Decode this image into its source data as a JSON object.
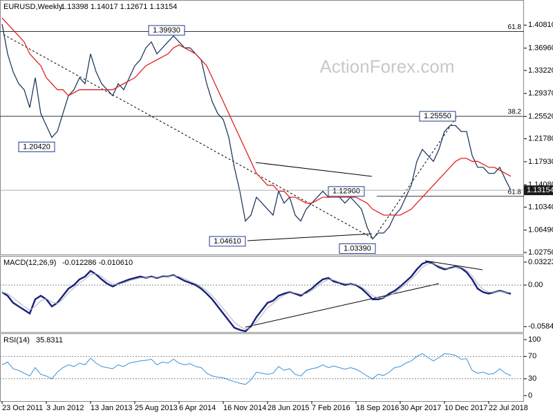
{
  "chart_data": [
    {
      "type": "line",
      "title": "EURUSD,Weekly",
      "subtitle": "1.13398 1.14017 1.12671 1.13154",
      "watermark": "ActionForex.com",
      "xlim": [
        -1.5,
        377.5
      ],
      "ylim": [
        1.024,
        1.449
      ],
      "yticks": [
        {
          "value": 1.4081,
          "label": "1.40810"
        },
        {
          "value": 1.3696,
          "label": "1.36960"
        },
        {
          "value": 1.3322,
          "label": "1.33220"
        },
        {
          "value": 1.2937,
          "label": "1.29370"
        },
        {
          "value": 1.2552,
          "label": "1.25520"
        },
        {
          "value": 1.2178,
          "label": "1.21780"
        },
        {
          "value": 1.1793,
          "label": "1.17930"
        },
        {
          "value": 1.1408,
          "label": "1.14080"
        },
        {
          "value": 1.1034,
          "label": "1.10340"
        },
        {
          "value": 1.0649,
          "label": "1.06490"
        },
        {
          "value": 1.0275,
          "label": "1.02750"
        }
      ],
      "x": [
        0,
        4,
        8,
        12,
        16,
        20,
        24,
        28,
        32,
        36,
        40,
        44,
        48,
        52,
        56,
        60,
        64,
        68,
        72,
        76,
        80,
        84,
        88,
        92,
        96,
        100,
        104,
        108,
        112,
        116,
        120,
        124,
        128,
        132,
        136,
        140,
        144,
        148,
        152,
        156,
        160,
        164,
        168,
        172,
        176,
        180,
        184,
        188,
        192,
        196,
        200,
        204,
        208,
        212,
        216,
        220,
        224,
        228,
        232,
        236,
        240,
        244,
        248,
        252,
        256,
        260,
        264,
        268,
        272,
        276,
        280,
        284,
        288,
        292,
        296,
        300,
        304,
        308,
        312,
        316,
        320,
        324,
        328,
        332,
        336,
        340,
        344,
        348,
        352,
        356,
        360,
        364,
        368
      ],
      "series": [
        {
          "name": "EURUSD",
          "color": "#1f3a5f",
          "values": [
            1.41,
            1.36,
            1.33,
            1.31,
            1.3,
            1.27,
            1.32,
            1.26,
            1.24,
            1.22,
            1.23,
            1.26,
            1.29,
            1.3,
            1.32,
            1.31,
            1.36,
            1.33,
            1.31,
            1.3,
            1.29,
            1.31,
            1.3,
            1.32,
            1.34,
            1.35,
            1.37,
            1.38,
            1.36,
            1.37,
            1.38,
            1.39,
            1.38,
            1.37,
            1.37,
            1.36,
            1.35,
            1.31,
            1.28,
            1.26,
            1.25,
            1.22,
            1.17,
            1.13,
            1.08,
            1.09,
            1.12,
            1.11,
            1.1,
            1.09,
            1.13,
            1.11,
            1.12,
            1.09,
            1.08,
            1.1,
            1.11,
            1.12,
            1.13,
            1.12,
            1.13,
            1.12,
            1.11,
            1.12,
            1.11,
            1.1,
            1.07,
            1.05,
            1.06,
            1.06,
            1.07,
            1.09,
            1.1,
            1.12,
            1.14,
            1.18,
            1.2,
            1.19,
            1.18,
            1.2,
            1.23,
            1.24,
            1.24,
            1.23,
            1.23,
            1.19,
            1.17,
            1.17,
            1.16,
            1.16,
            1.17,
            1.15,
            1.13154
          ]
        },
        {
          "name": "MA",
          "color": "#e02020",
          "values": [
            1.42,
            1.41,
            1.4,
            1.39,
            1.38,
            1.36,
            1.35,
            1.34,
            1.32,
            1.31,
            1.3,
            1.3,
            1.29,
            1.295,
            1.3,
            1.3,
            1.3,
            1.3,
            1.3,
            1.3,
            1.3,
            1.305,
            1.31,
            1.315,
            1.32,
            1.33,
            1.34,
            1.345,
            1.35,
            1.355,
            1.36,
            1.37,
            1.375,
            1.37,
            1.365,
            1.36,
            1.35,
            1.34,
            1.32,
            1.3,
            1.28,
            1.26,
            1.24,
            1.22,
            1.2,
            1.18,
            1.16,
            1.15,
            1.14,
            1.14,
            1.13,
            1.13,
            1.12,
            1.12,
            1.115,
            1.11,
            1.11,
            1.115,
            1.12,
            1.12,
            1.12,
            1.12,
            1.12,
            1.12,
            1.12,
            1.115,
            1.11,
            1.1,
            1.095,
            1.09,
            1.09,
            1.09,
            1.09,
            1.095,
            1.1,
            1.11,
            1.12,
            1.13,
            1.14,
            1.15,
            1.16,
            1.17,
            1.18,
            1.185,
            1.185,
            1.18,
            1.18,
            1.175,
            1.17,
            1.17,
            1.165,
            1.16,
            1.155
          ]
        }
      ],
      "price_labels": [
        {
          "label": "1.39930",
          "value": 1.3993,
          "x": 106
        },
        {
          "label": "1.20420",
          "value": 1.2042,
          "x": 12
        },
        {
          "label": "1.04610",
          "value": 1.0461,
          "x": 150
        },
        {
          "label": "1.03390",
          "value": 1.0339,
          "x": 244
        },
        {
          "label": "1.12960",
          "value": 1.1296,
          "x": 236
        },
        {
          "label": "1.25550",
          "value": 1.2555,
          "x": 302
        }
      ],
      "levels": [
        {
          "value": 1.3975,
          "label": "61.8"
        },
        {
          "value": 1.2555,
          "label": "38.2"
        },
        {
          "value": 1.1215,
          "label": "61.8",
          "from": 271
        }
      ]
    },
    {
      "type": "line",
      "title": "MACD(12,26,9)",
      "subtitle": "-0.012286 -0.010610",
      "xlim": [
        -1.5,
        377.5
      ],
      "ylim": [
        -0.066,
        0.04
      ],
      "yticks": [
        0.032235,
        {
          "value": 0,
          "label": "0.00"
        },
        {
          "value": -0.05843,
          "label": "-0.058430"
        }
      ],
      "reference_lines": [
        0
      ],
      "x": [
        0,
        4,
        8,
        12,
        16,
        20,
        24,
        28,
        32,
        36,
        40,
        44,
        48,
        52,
        56,
        60,
        64,
        68,
        72,
        76,
        80,
        84,
        88,
        92,
        96,
        100,
        104,
        108,
        112,
        116,
        120,
        124,
        128,
        132,
        136,
        140,
        144,
        148,
        152,
        156,
        160,
        164,
        168,
        172,
        176,
        180,
        184,
        188,
        192,
        196,
        200,
        204,
        208,
        212,
        216,
        220,
        224,
        228,
        232,
        236,
        240,
        244,
        248,
        252,
        256,
        260,
        264,
        268,
        272,
        276,
        280,
        284,
        288,
        292,
        296,
        300,
        304,
        308,
        312,
        316,
        320,
        324,
        328,
        332,
        336,
        340,
        344,
        348,
        352,
        356,
        360,
        364,
        368
      ],
      "series": [
        {
          "name": "MACD",
          "color": "#1a237e",
          "width": 2.5,
          "values": [
            -0.01,
            -0.015,
            -0.025,
            -0.03,
            -0.035,
            -0.04,
            -0.02,
            -0.015,
            -0.02,
            -0.03,
            -0.025,
            -0.015,
            -0.005,
            0.0,
            0.008,
            0.012,
            0.02,
            0.015,
            0.008,
            0.002,
            -0.002,
            0.002,
            0.005,
            0.008,
            0.01,
            0.012,
            0.01,
            0.012,
            0.01,
            0.012,
            0.012,
            0.014,
            0.01,
            0.006,
            0.003,
            0.0,
            -0.005,
            -0.012,
            -0.02,
            -0.03,
            -0.04,
            -0.05,
            -0.06,
            -0.063,
            -0.065,
            -0.058,
            -0.045,
            -0.035,
            -0.025,
            -0.022,
            -0.015,
            -0.012,
            -0.01,
            -0.012,
            -0.015,
            -0.01,
            -0.005,
            0.002,
            0.008,
            0.01,
            0.005,
            0.003,
            0.0,
            0.002,
            0.0,
            -0.005,
            -0.012,
            -0.02,
            -0.02,
            -0.018,
            -0.012,
            -0.008,
            -0.002,
            0.005,
            0.012,
            0.022,
            0.03,
            0.033,
            0.03,
            0.025,
            0.022,
            0.024,
            0.026,
            0.024,
            0.018,
            0.008,
            -0.005,
            -0.01,
            -0.012,
            -0.01,
            -0.008,
            -0.01,
            -0.012286
          ]
        },
        {
          "name": "Signal",
          "color": "#b0b0b0",
          "width": 1,
          "values": [
            -0.01,
            -0.012,
            -0.018,
            -0.024,
            -0.03,
            -0.035,
            -0.03,
            -0.022,
            -0.019,
            -0.024,
            -0.026,
            -0.02,
            -0.011,
            -0.004,
            0.003,
            0.008,
            0.015,
            0.016,
            0.012,
            0.006,
            0.001,
            0.001,
            0.003,
            0.006,
            0.008,
            0.01,
            0.01,
            0.011,
            0.011,
            0.011,
            0.012,
            0.013,
            0.012,
            0.009,
            0.005,
            0.002,
            -0.002,
            -0.008,
            -0.015,
            -0.024,
            -0.033,
            -0.043,
            -0.052,
            -0.058,
            -0.062,
            -0.06,
            -0.052,
            -0.042,
            -0.032,
            -0.026,
            -0.019,
            -0.014,
            -0.011,
            -0.011,
            -0.013,
            -0.012,
            -0.008,
            -0.002,
            0.004,
            0.008,
            0.007,
            0.004,
            0.002,
            0.002,
            0.001,
            -0.003,
            -0.008,
            -0.015,
            -0.018,
            -0.018,
            -0.015,
            -0.011,
            -0.005,
            0.001,
            0.008,
            0.016,
            0.025,
            0.03,
            0.03,
            0.027,
            0.024,
            0.023,
            0.025,
            0.025,
            0.021,
            0.013,
            0.002,
            -0.006,
            -0.01,
            -0.01,
            -0.009,
            -0.01,
            -0.01061
          ]
        }
      ]
    },
    {
      "type": "line",
      "title": "RSI(14)",
      "subtitle": "35.8311",
      "xlim": [
        -1.5,
        377.5
      ],
      "ylim": [
        -10,
        110
      ],
      "yticks": [
        100,
        70,
        30,
        0
      ],
      "reference_lines": [
        70,
        30
      ],
      "xticks": [
        {
          "value": 0,
          "label": "23 Oct 2011"
        },
        {
          "value": 32,
          "label": "3 Jun 2012"
        },
        {
          "value": 64,
          "label": "13 Jan 2013"
        },
        {
          "value": 96,
          "label": "25 Aug 2013"
        },
        {
          "value": 128,
          "label": "6 Apr 2014"
        },
        {
          "value": 160,
          "label": "16 Nov 2014"
        },
        {
          "value": 192,
          "label": "28 Jun 2015"
        },
        {
          "value": 224,
          "label": "7 Feb 2016"
        },
        {
          "value": 256,
          "label": "18 Sep 2016"
        },
        {
          "value": 288,
          "label": "30 Apr 2017"
        },
        {
          "value": 320,
          "label": "10 Dec 2017"
        },
        {
          "value": 352,
          "label": "22 Jul 2018"
        }
      ],
      "x": [
        0,
        4,
        8,
        12,
        16,
        20,
        24,
        28,
        32,
        36,
        40,
        44,
        48,
        52,
        56,
        60,
        64,
        68,
        72,
        76,
        80,
        84,
        88,
        92,
        96,
        100,
        104,
        108,
        112,
        116,
        120,
        124,
        128,
        132,
        136,
        140,
        144,
        148,
        152,
        156,
        160,
        164,
        168,
        172,
        176,
        180,
        184,
        188,
        192,
        196,
        200,
        204,
        208,
        212,
        216,
        220,
        224,
        228,
        232,
        236,
        240,
        244,
        248,
        252,
        256,
        260,
        264,
        268,
        272,
        276,
        280,
        284,
        288,
        292,
        296,
        300,
        304,
        308,
        312,
        316,
        320,
        324,
        328,
        332,
        336,
        340,
        344,
        348,
        352,
        356,
        360,
        364,
        368
      ],
      "series": [
        {
          "name": "RSI",
          "color": "#3a8fd8",
          "width": 1,
          "values": [
            55,
            60,
            48,
            45,
            40,
            35,
            50,
            38,
            35,
            30,
            42,
            50,
            55,
            52,
            58,
            55,
            67,
            58,
            52,
            50,
            48,
            55,
            52,
            58,
            60,
            62,
            63,
            65,
            55,
            60,
            58,
            65,
            58,
            55,
            57,
            52,
            50,
            40,
            35,
            33,
            32,
            28,
            25,
            22,
            20,
            28,
            42,
            40,
            38,
            40,
            52,
            45,
            48,
            38,
            35,
            45,
            48,
            50,
            55,
            50,
            53,
            50,
            47,
            50,
            47,
            42,
            35,
            30,
            38,
            36,
            42,
            50,
            52,
            58,
            62,
            70,
            75,
            68,
            62,
            68,
            75,
            74,
            72,
            65,
            66,
            45,
            40,
            42,
            38,
            40,
            48,
            40,
            35.8311
          ]
        }
      ]
    }
  ]
}
